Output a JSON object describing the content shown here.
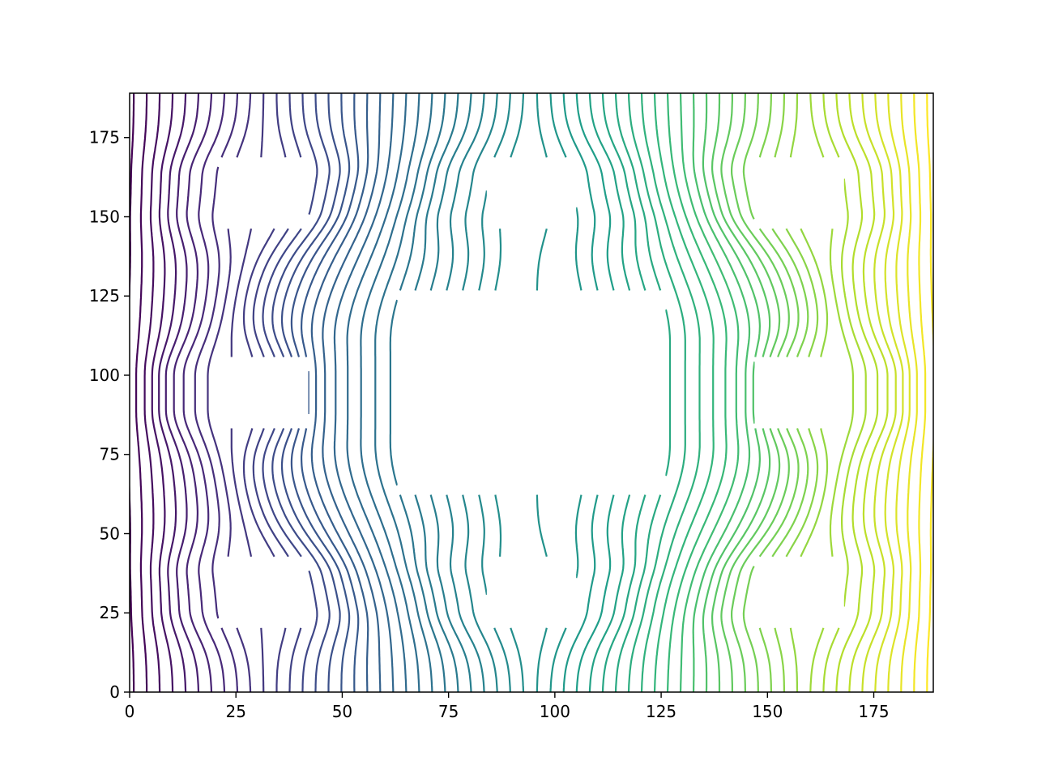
{
  "chart_data": {
    "type": "contour",
    "title": "",
    "xlabel": "",
    "ylabel": "",
    "xlim": [
      0,
      189
    ],
    "ylim": [
      0,
      189
    ],
    "x_ticks": [
      0,
      25,
      50,
      75,
      100,
      125,
      150,
      175
    ],
    "y_ticks": [
      0,
      25,
      50,
      75,
      100,
      125,
      150,
      175
    ],
    "tick_labels_x": [
      "0",
      "25",
      "50",
      "75",
      "100",
      "125",
      "150",
      "175"
    ],
    "tick_labels_y": [
      "0",
      "25",
      "50",
      "75",
      "100",
      "125",
      "150",
      "175"
    ],
    "grid": false,
    "legend": "none",
    "colormap": "viridis",
    "colormap_stops": [
      "#440154",
      "#482878",
      "#3e4a89",
      "#31688e",
      "#26828e",
      "#1f9e89",
      "#35b779",
      "#6ece58",
      "#b5de2b",
      "#fde725"
    ],
    "contour_levels": 62,
    "masked_regions": [
      {
        "x": [
          21,
          42
        ],
        "y": [
          147,
          168
        ]
      },
      {
        "x": [
          84,
          105
        ],
        "y": [
          147,
          168
        ]
      },
      {
        "x": [
          147,
          168
        ],
        "y": [
          147,
          168
        ]
      },
      {
        "x": [
          21,
          42
        ],
        "y": [
          84,
          105
        ]
      },
      {
        "x": [
          63,
          126
        ],
        "y": [
          63,
          126
        ]
      },
      {
        "x": [
          147,
          168
        ],
        "y": [
          84,
          105
        ]
      },
      {
        "x": [
          21,
          42
        ],
        "y": [
          21,
          42
        ]
      },
      {
        "x": [
          84,
          105
        ],
        "y": [
          21,
          42
        ]
      },
      {
        "x": [
          147,
          168
        ],
        "y": [
          21,
          42
        ]
      }
    ]
  }
}
